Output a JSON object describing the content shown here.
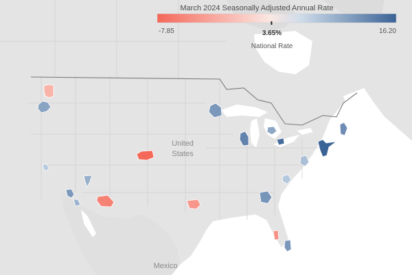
{
  "legend": {
    "title": "March 2024 Seasonally Adjusted Annual Rate",
    "min_label": "-7.85",
    "max_label": "16.20",
    "national_value": "3.65%",
    "national_label": "National Rate",
    "min_value": -7.85,
    "max_value": 16.2,
    "national_rate": 3.65,
    "color_low": "#f4685a",
    "color_mid": "#cddbea",
    "color_high": "#3a6396"
  },
  "map_labels": {
    "country_main": [
      "United",
      "States"
    ],
    "country_south": "Mexico"
  },
  "colors": {
    "land": "#e4e4e4",
    "land_alt": "#dedede",
    "water": "#ffffff",
    "border": "#d2d2d2",
    "country_border": "#7a7a7a"
  },
  "metros": [
    {
      "name": "seattle-metro",
      "value": -2.5
    },
    {
      "name": "portland-metro",
      "value": 7.5
    },
    {
      "name": "san-francisco-metro",
      "value": 2.2
    },
    {
      "name": "los-angeles-metro",
      "value": 9.0
    },
    {
      "name": "san-diego-metro",
      "value": 5.5
    },
    {
      "name": "las-vegas-metro",
      "value": 6.0
    },
    {
      "name": "phoenix-metro",
      "value": -6.0
    },
    {
      "name": "denver-metro",
      "value": -7.85
    },
    {
      "name": "dallas-metro",
      "value": -4.5
    },
    {
      "name": "minneapolis-metro",
      "value": 9.0
    },
    {
      "name": "chicago-metro",
      "value": 12.0
    },
    {
      "name": "detroit-metro",
      "value": 7.0
    },
    {
      "name": "cleveland-metro",
      "value": 15.0
    },
    {
      "name": "washington-metro",
      "value": 3.8
    },
    {
      "name": "charlotte-metro",
      "value": 2.5
    },
    {
      "name": "atlanta-metro",
      "value": 9.5
    },
    {
      "name": "new-york-metro",
      "value": 16.2
    },
    {
      "name": "boston-metro",
      "value": 10.5
    },
    {
      "name": "tampa-metro",
      "value": -5.0
    },
    {
      "name": "miami-metro",
      "value": 9.0
    }
  ]
}
